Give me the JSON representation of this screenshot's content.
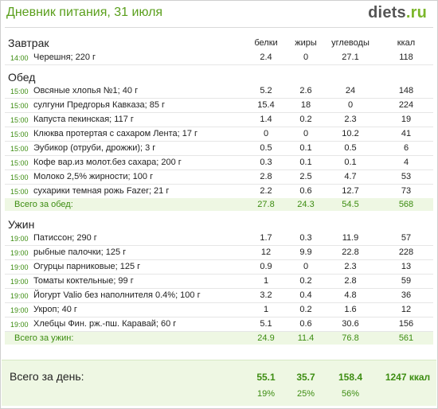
{
  "header": {
    "title": "Дневник питания, 31 июля",
    "logo_brand": "diets",
    "logo_tld": ".ru"
  },
  "columns": {
    "protein": "белки",
    "fat": "жиры",
    "carbs": "углеводы",
    "kcal": "ккал"
  },
  "breakfast": {
    "title": "Завтрак",
    "items": [
      {
        "time": "14:00",
        "name": "Черешня; 220 г",
        "protein": "2.4",
        "fat": "0",
        "carbs": "27.1",
        "kcal": "118"
      }
    ]
  },
  "lunch": {
    "title": "Обед",
    "items": [
      {
        "time": "15:00",
        "name": "Овсяные хлопья №1; 40 г",
        "protein": "5.2",
        "fat": "2.6",
        "carbs": "24",
        "kcal": "148"
      },
      {
        "time": "15:00",
        "name": "сулгуни Предгорья Кавказа; 85 г",
        "protein": "15.4",
        "fat": "18",
        "carbs": "0",
        "kcal": "224"
      },
      {
        "time": "15:00",
        "name": "Капуста пекинская; 117 г",
        "protein": "1.4",
        "fat": "0.2",
        "carbs": "2.3",
        "kcal": "19"
      },
      {
        "time": "15:00",
        "name": "Клюква протертая с сахаром Лента; 17 г",
        "protein": "0",
        "fat": "0",
        "carbs": "10.2",
        "kcal": "41"
      },
      {
        "time": "15:00",
        "name": "Эубикор (отруби, дрожжи); 3 г",
        "protein": "0.5",
        "fat": "0.1",
        "carbs": "0.5",
        "kcal": "6"
      },
      {
        "time": "15:00",
        "name": "Кофе вар.из молот.без сахара; 200 г",
        "protein": "0.3",
        "fat": "0.1",
        "carbs": "0.1",
        "kcal": "4"
      },
      {
        "time": "15:00",
        "name": "Молоко 2,5% жирности; 100 г",
        "protein": "2.8",
        "fat": "2.5",
        "carbs": "4.7",
        "kcal": "53"
      },
      {
        "time": "15:00",
        "name": "сухарики темная рожь Fazer; 21 г",
        "protein": "2.2",
        "fat": "0.6",
        "carbs": "12.7",
        "kcal": "73"
      }
    ],
    "total": {
      "label": "Всего за обед:",
      "protein": "27.8",
      "fat": "24.3",
      "carbs": "54.5",
      "kcal": "568"
    }
  },
  "dinner": {
    "title": "Ужин",
    "items": [
      {
        "time": "19:00",
        "name": "Патиссон; 290 г",
        "protein": "1.7",
        "fat": "0.3",
        "carbs": "11.9",
        "kcal": "57"
      },
      {
        "time": "19:00",
        "name": "рыбные палочки; 125 г",
        "protein": "12",
        "fat": "9.9",
        "carbs": "22.8",
        "kcal": "228"
      },
      {
        "time": "19:00",
        "name": "Огурцы парниковые; 125 г",
        "protein": "0.9",
        "fat": "0",
        "carbs": "2.3",
        "kcal": "13"
      },
      {
        "time": "19:00",
        "name": "Томаты коктельные; 99 г",
        "protein": "1",
        "fat": "0.2",
        "carbs": "2.8",
        "kcal": "59"
      },
      {
        "time": "19:00",
        "name": "Йогурт Valio без наполнителя 0.4%; 100 г",
        "protein": "3.2",
        "fat": "0.4",
        "carbs": "4.8",
        "kcal": "36"
      },
      {
        "time": "19:00",
        "name": "Укроп; 40 г",
        "protein": "1",
        "fat": "0.2",
        "carbs": "1.6",
        "kcal": "12"
      },
      {
        "time": "19:00",
        "name": "Хлебцы Фин. рж.-пш. Каравай; 60 г",
        "protein": "5.1",
        "fat": "0.6",
        "carbs": "30.6",
        "kcal": "156"
      }
    ],
    "total": {
      "label": "Всего за ужин:",
      "protein": "24.9",
      "fat": "11.4",
      "carbs": "76.8",
      "kcal": "561"
    }
  },
  "day": {
    "label": "Всего за день:",
    "protein": "55.1",
    "fat": "35.7",
    "carbs": "158.4",
    "kcal": "1247 ккал",
    "protein_pct": "19%",
    "fat_pct": "25%",
    "carbs_pct": "56%"
  },
  "colors": {
    "accent": "#3d8d12",
    "title": "#5a9f1c",
    "total_bg": "#eef7e3"
  }
}
